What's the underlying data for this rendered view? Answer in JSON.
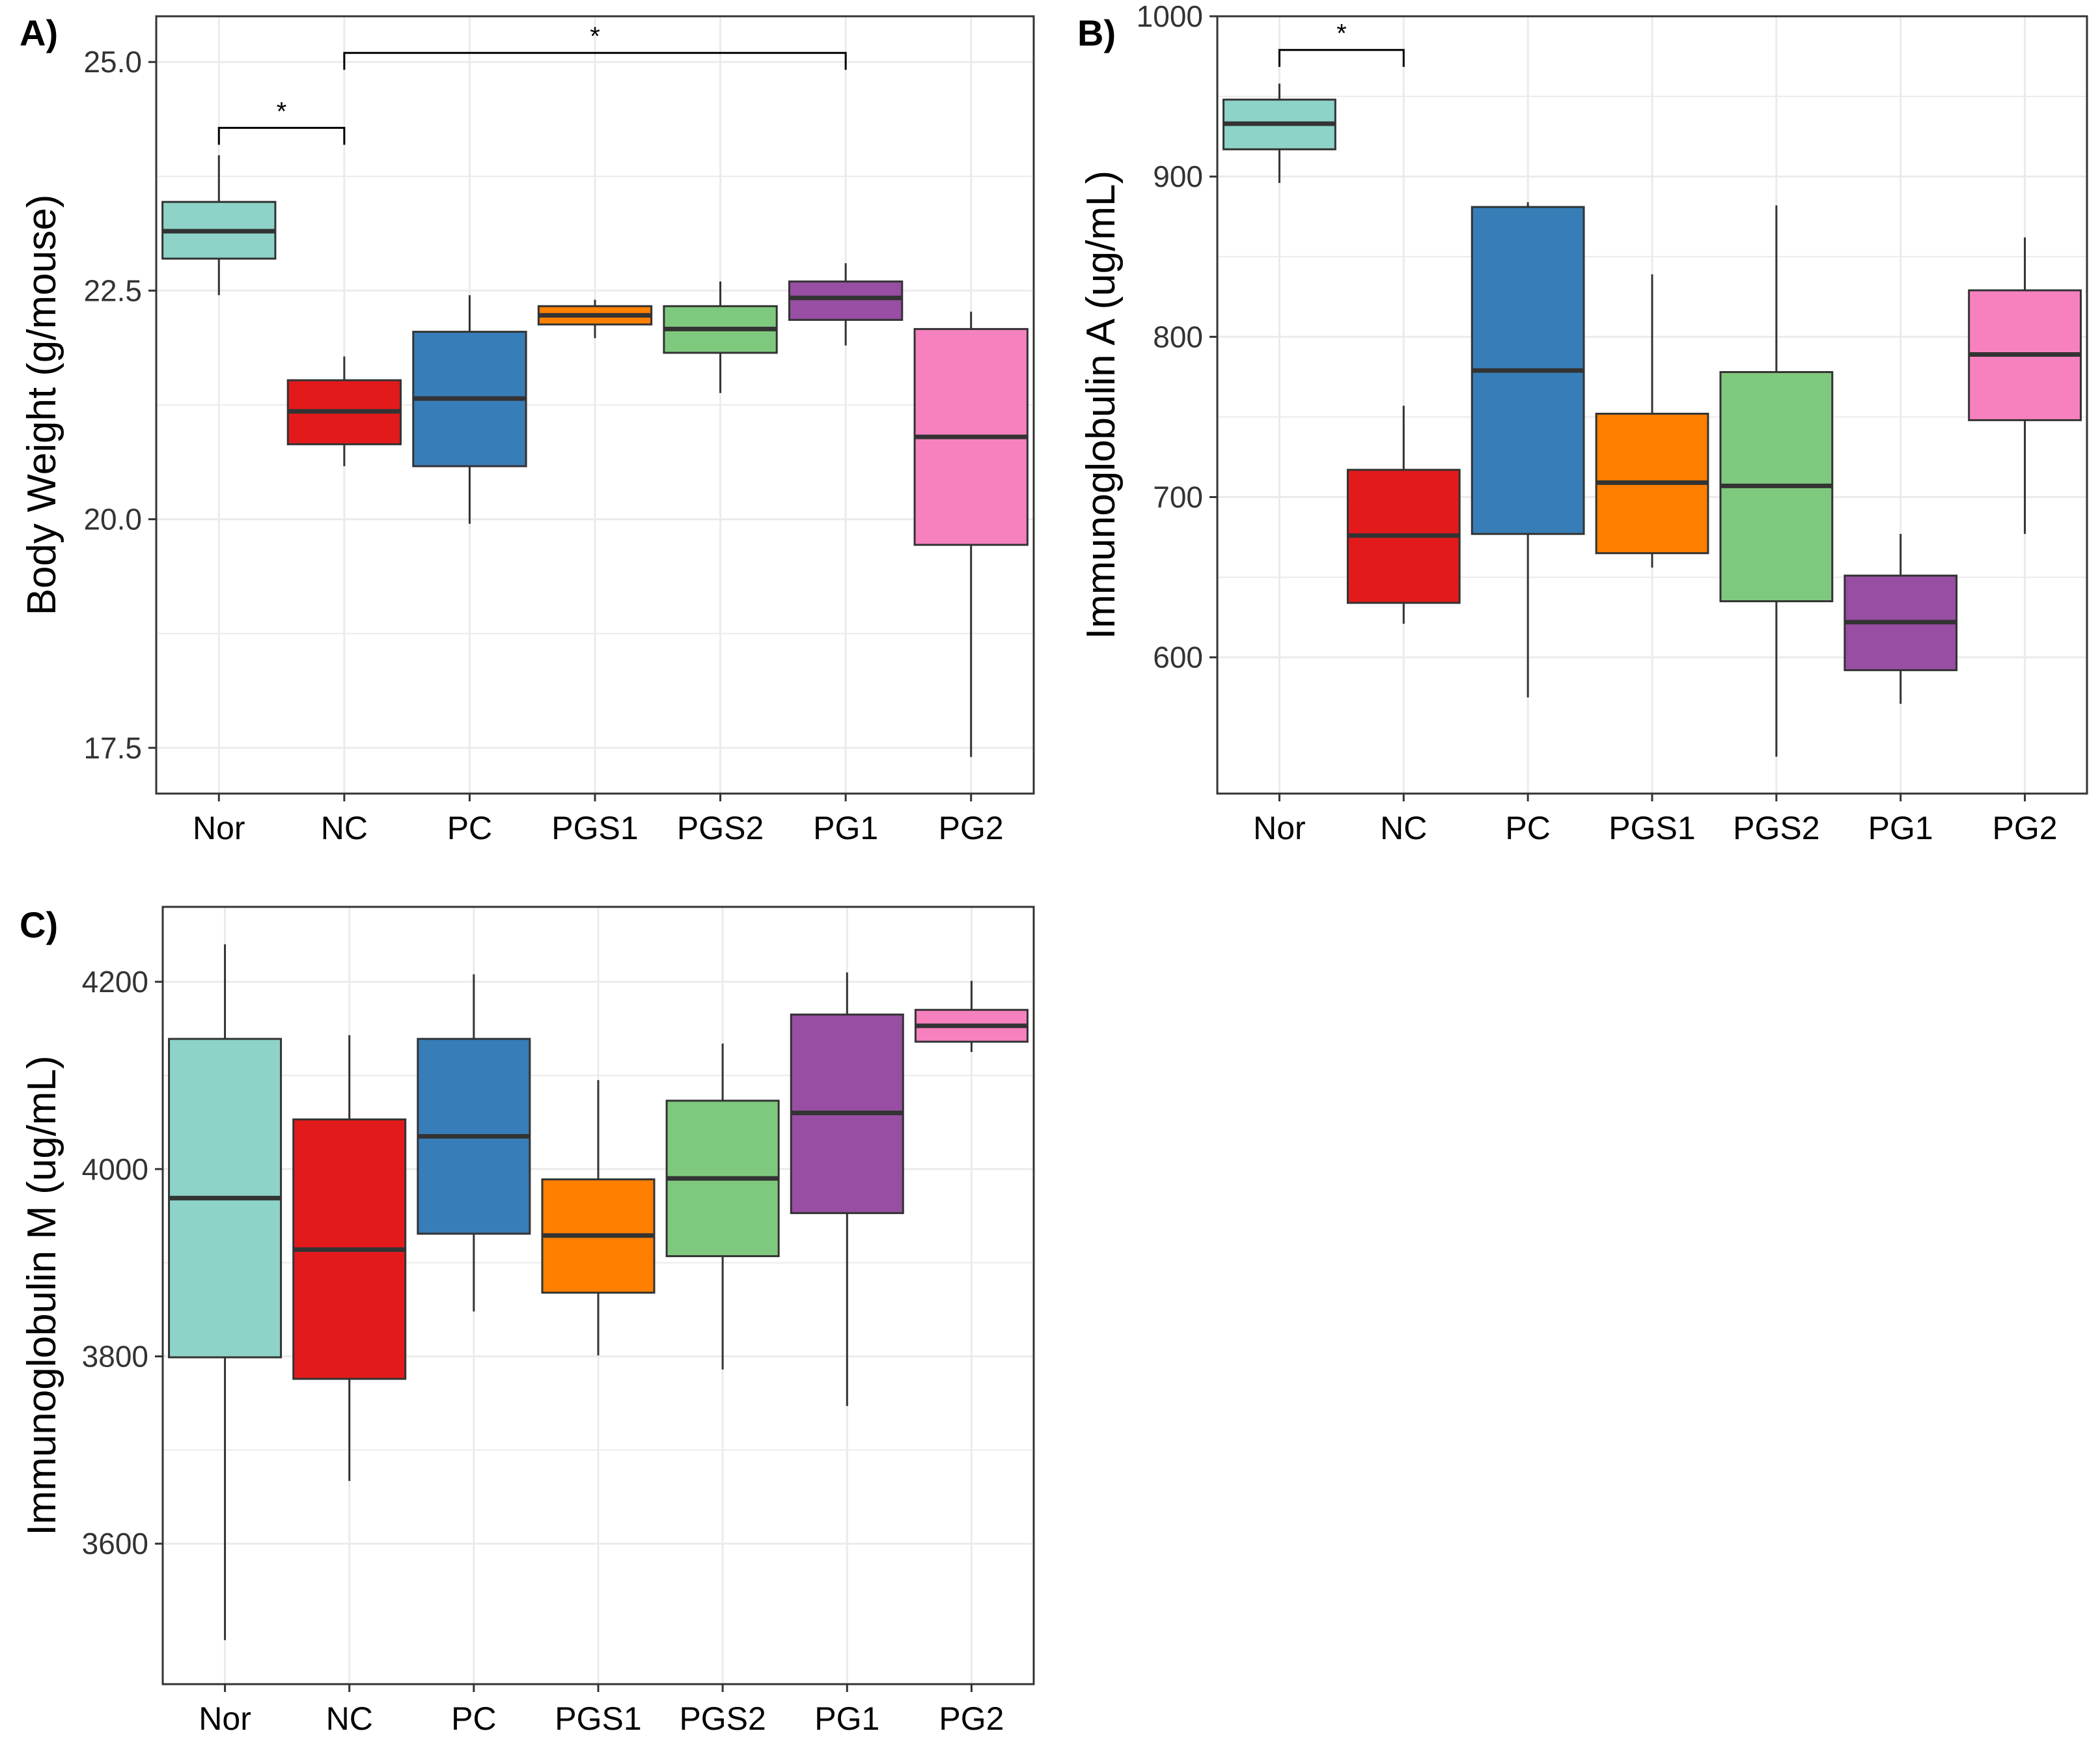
{
  "chart_data": [
    {
      "type": "boxplot",
      "panel_label": "A)",
      "title": "",
      "xlabel": "",
      "ylabel": "Body Weight (g/mouse)",
      "ylim": [
        17.0,
        25.5
      ],
      "yticks": [
        17.5,
        20.0,
        22.5,
        25.0
      ],
      "ytick_labels": [
        "17.5",
        "20.0",
        "22.5",
        "25.0"
      ],
      "grid": true,
      "categories": [
        "Nor",
        "NC",
        "PC",
        "PGS1",
        "PGS2",
        "PG1",
        "PG2"
      ],
      "boxes": [
        {
          "min": 22.45,
          "q1": 22.85,
          "median": 23.15,
          "q3": 23.47,
          "max": 23.98
        },
        {
          "min": 20.58,
          "q1": 20.82,
          "median": 21.18,
          "q3": 21.52,
          "max": 21.78
        },
        {
          "min": 19.95,
          "q1": 20.58,
          "median": 21.32,
          "q3": 22.05,
          "max": 22.45
        },
        {
          "min": 21.98,
          "q1": 22.13,
          "median": 22.23,
          "q3": 22.33,
          "max": 22.4
        },
        {
          "min": 21.38,
          "q1": 21.82,
          "median": 22.08,
          "q3": 22.33,
          "max": 22.6
        },
        {
          "min": 21.9,
          "q1": 22.18,
          "median": 22.42,
          "q3": 22.6,
          "max": 22.8
        },
        {
          "min": 17.4,
          "q1": 19.72,
          "median": 20.9,
          "q3": 22.08,
          "max": 22.27
        }
      ],
      "significance": [
        {
          "from": "Nor",
          "to": "NC",
          "y": 24.28,
          "label": "*"
        },
        {
          "from": "NC",
          "to": "PG1",
          "y": 25.1,
          "label": "*"
        }
      ]
    },
    {
      "type": "boxplot",
      "panel_label": "B)",
      "title": "",
      "xlabel": "",
      "ylabel": "Immunoglobulin A (ug/mL)",
      "ylim": [
        515,
        1000
      ],
      "yticks": [
        600,
        700,
        800,
        900,
        1000
      ],
      "ytick_labels": [
        "600",
        "700",
        "800",
        "900",
        "1000"
      ],
      "grid": true,
      "categories": [
        "Nor",
        "NC",
        "PC",
        "PGS1",
        "PGS2",
        "PG1",
        "PG2"
      ],
      "boxes": [
        {
          "min": 896,
          "q1": 917,
          "median": 933,
          "q3": 948,
          "max": 958
        },
        {
          "min": 621,
          "q1": 634,
          "median": 676,
          "q3": 717,
          "max": 757
        },
        {
          "min": 575,
          "q1": 677,
          "median": 779,
          "q3": 881,
          "max": 884
        },
        {
          "min": 656,
          "q1": 665,
          "median": 709,
          "q3": 752,
          "max": 839
        },
        {
          "min": 538,
          "q1": 635,
          "median": 707,
          "q3": 778,
          "max": 882
        },
        {
          "min": 571,
          "q1": 592,
          "median": 622,
          "q3": 651,
          "max": 677
        },
        {
          "min": 677,
          "q1": 748,
          "median": 789,
          "q3": 829,
          "max": 862
        }
      ],
      "significance": [
        {
          "from": "Nor",
          "to": "NC",
          "y": 979,
          "label": "*"
        }
      ]
    },
    {
      "type": "boxplot",
      "panel_label": "C)",
      "title": "",
      "xlabel": "",
      "ylabel": "Immunoglobulin M (ug/mL)",
      "ylim": [
        3450,
        4280
      ],
      "yticks": [
        3600,
        3800,
        4000,
        4200
      ],
      "ytick_labels": [
        "3600",
        "3800",
        "4000",
        "4200"
      ],
      "grid": true,
      "categories": [
        "Nor",
        "NC",
        "PC",
        "PGS1",
        "PGS2",
        "PG1",
        "PG2"
      ],
      "boxes": [
        {
          "min": 3497,
          "q1": 3799,
          "median": 3969,
          "q3": 4139,
          "max": 4240
        },
        {
          "min": 3667,
          "q1": 3776,
          "median": 3914,
          "q3": 4053,
          "max": 4143
        },
        {
          "min": 3848,
          "q1": 3931,
          "median": 4035,
          "q3": 4139,
          "max": 4208
        },
        {
          "min": 3801,
          "q1": 3868,
          "median": 3929,
          "q3": 3989,
          "max": 4095
        },
        {
          "min": 3786,
          "q1": 3907,
          "median": 3990,
          "q3": 4073,
          "max": 4134
        },
        {
          "min": 3747,
          "q1": 3953,
          "median": 4060,
          "q3": 4165,
          "max": 4210
        },
        {
          "min": 4125,
          "q1": 4136,
          "median": 4153,
          "q3": 4170,
          "max": 4201
        }
      ],
      "significance": []
    }
  ],
  "colors": {
    "Nor": "#8dd3c7",
    "NC": "#e31a1c",
    "PC": "#377eb8",
    "PGS1": "#ff7f00",
    "PGS2": "#7fc97f",
    "PG1": "#984ea3",
    "PG2": "#f781bf",
    "grid": "#ebebeb",
    "frame": "#333333"
  }
}
